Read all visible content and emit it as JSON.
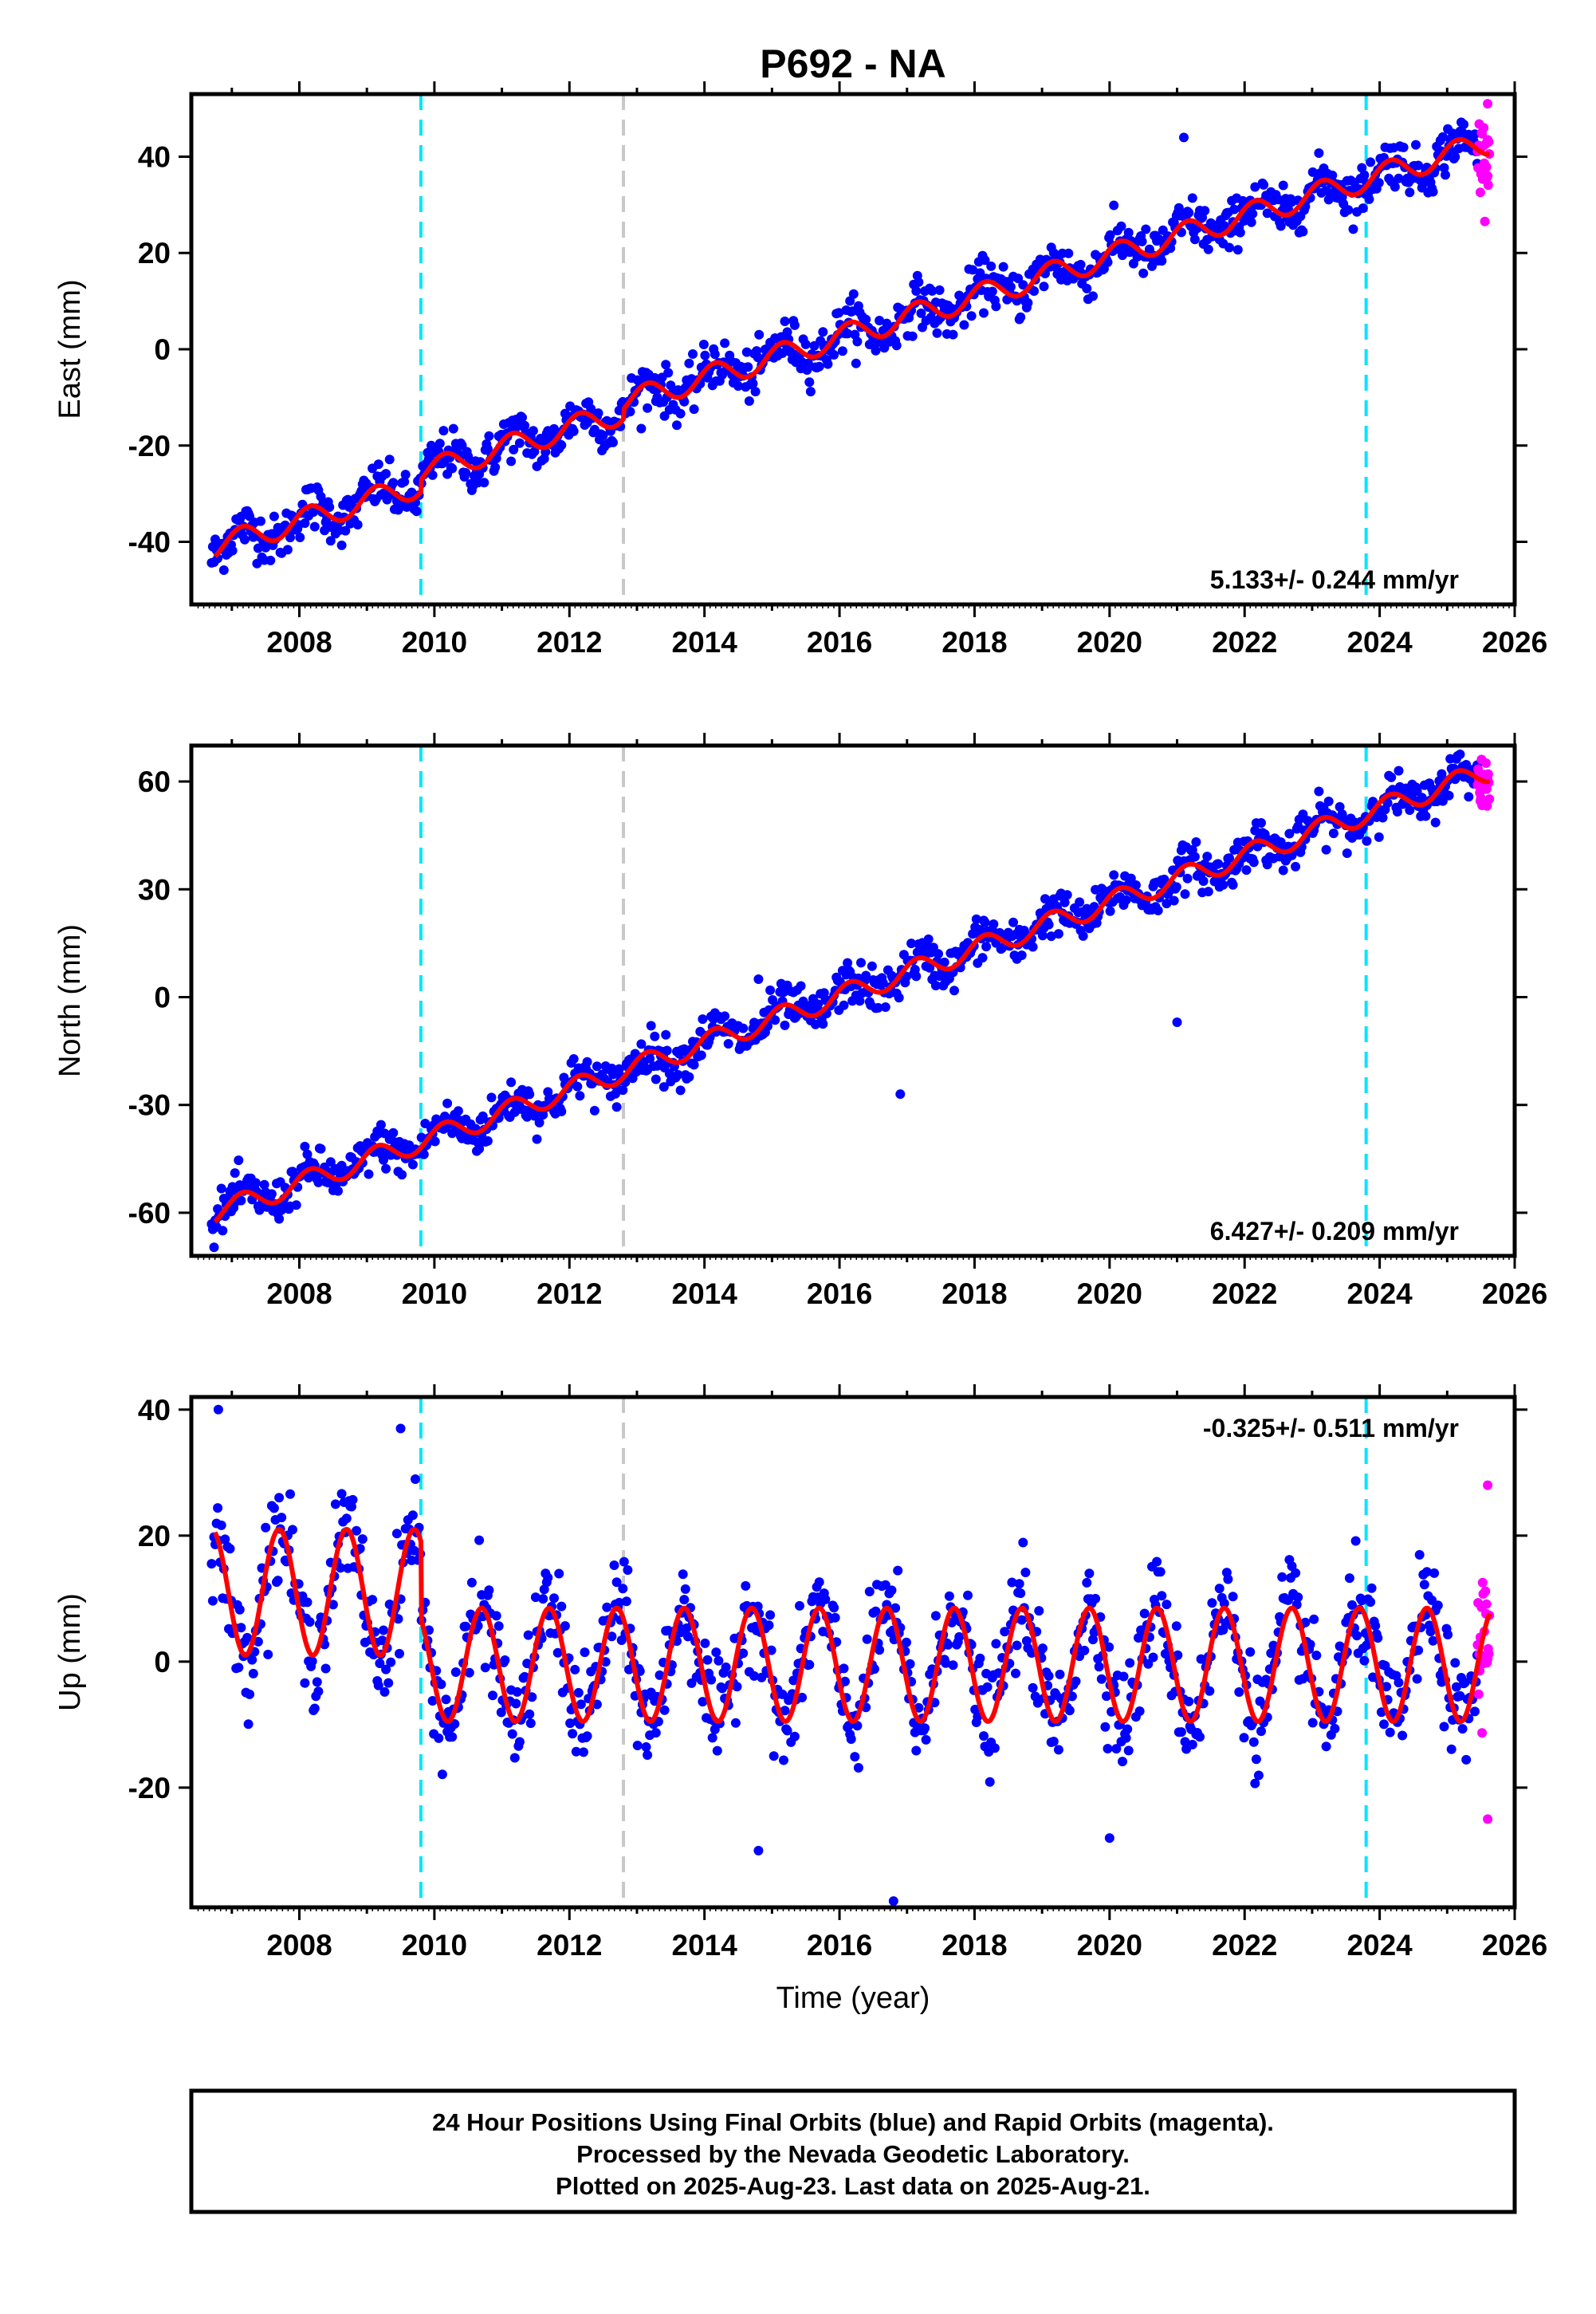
{
  "title": "P692 - NA",
  "xlabel": "Time (year)",
  "x_ticks": [
    "2008",
    "2010",
    "2012",
    "2014",
    "2016",
    "2018",
    "2020",
    "2022",
    "2024",
    "2026"
  ],
  "footer": [
    "24 Hour Positions Using Final Orbits (blue) and Rapid Orbits (magenta).",
    "Processed by the Nevada Geodetic Laboratory.",
    "Plotted on 2025-Aug-23. Last data on 2025-Aug-21."
  ],
  "colors": {
    "final_orbits": "#0000ff",
    "rapid_orbits": "#ff00ff",
    "model_fit": "#ff0000",
    "equipment_change": "#00e5ff",
    "other_event": "#c8c8c8"
  },
  "chart_data": [
    {
      "type": "scatter",
      "component": "east",
      "ylabel": "East (mm)",
      "rate_text": "5.133+/- 0.244 mm/yr",
      "rate_position": "bottom-right",
      "xlim": [
        2006.4,
        2026.0
      ],
      "ylim": [
        -53,
        53
      ],
      "y_ticks": [
        -40,
        -20,
        0,
        20,
        40
      ],
      "series_fit": {
        "x_start": 2006.75,
        "x_end": 2025.63,
        "y_at_start": -41,
        "y_at_end": 43,
        "annual_amplitude": 2.5,
        "offsets": [
          {
            "x": 2009.8,
            "dy": 2.5
          },
          {
            "x": 2012.8,
            "dy": 2.0
          }
        ]
      },
      "event_lines": [
        {
          "x": 2009.8,
          "color": "#00e5ff"
        },
        {
          "x": 2012.8,
          "color": "#c8c8c8"
        },
        {
          "x": 2023.8,
          "color": "#00e5ff"
        }
      ],
      "data_span": [
        2006.7,
        2025.45
      ],
      "rapid_span": [
        2025.45,
        2025.63
      ],
      "scatter_sd": 2.5,
      "outliers": [
        {
          "x": 2021.1,
          "y": 44
        },
        {
          "x": 2025.6,
          "y": 51
        },
        {
          "x": 2025.6,
          "y": 36
        }
      ]
    },
    {
      "type": "scatter",
      "component": "north",
      "ylabel": "North (mm)",
      "rate_text": "6.427+/- 0.209 mm/yr",
      "rate_position": "bottom-right",
      "xlim": [
        2006.4,
        2026.0
      ],
      "ylim": [
        -72,
        70
      ],
      "y_ticks": [
        -60,
        -30,
        0,
        30,
        60
      ],
      "series_fit": {
        "x_start": 2006.75,
        "x_end": 2025.63,
        "y_at_start": -60,
        "y_at_end": 63,
        "annual_amplitude": 3.0,
        "offsets": []
      },
      "event_lines": [
        {
          "x": 2009.8,
          "color": "#00e5ff"
        },
        {
          "x": 2012.8,
          "color": "#c8c8c8"
        },
        {
          "x": 2023.8,
          "color": "#00e5ff"
        }
      ],
      "data_span": [
        2006.7,
        2025.45
      ],
      "rapid_span": [
        2025.45,
        2025.63
      ],
      "scatter_sd": 3.0,
      "outliers": [
        {
          "x": 2016.9,
          "y": -27
        },
        {
          "x": 2013.4,
          "y": -25
        },
        {
          "x": 2021.0,
          "y": -7
        },
        {
          "x": 2014.8,
          "y": 5
        }
      ]
    },
    {
      "type": "scatter",
      "component": "up",
      "ylabel": "Up (mm)",
      "rate_text": "-0.325+/- 0.511 mm/yr",
      "rate_position": "top-right",
      "xlim": [
        2006.4,
        2026.0
      ],
      "ylim": [
        -39,
        42
      ],
      "y_ticks": [
        -20,
        0,
        20,
        40
      ],
      "series_fit": {
        "x_start": 2006.75,
        "x_end": 2025.63,
        "mean_before": 11,
        "mean_after": -0.5,
        "amplitude_before": 10,
        "amplitude_after": 9,
        "break_x": 2009.8
      },
      "event_lines": [
        {
          "x": 2009.8,
          "color": "#00e5ff"
        },
        {
          "x": 2012.8,
          "color": "#c8c8c8"
        },
        {
          "x": 2023.8,
          "color": "#00e5ff"
        }
      ],
      "data_span": [
        2006.7,
        2025.45
      ],
      "rapid_span": [
        2025.45,
        2025.63
      ],
      "scatter_sd": 4.0,
      "outliers": [
        {
          "x": 2006.8,
          "y": 40
        },
        {
          "x": 2009.5,
          "y": 37
        },
        {
          "x": 2014.8,
          "y": -30
        },
        {
          "x": 2016.8,
          "y": -38
        },
        {
          "x": 2020.0,
          "y": -28
        },
        {
          "x": 2025.6,
          "y": 28
        },
        {
          "x": 2025.6,
          "y": -25
        }
      ]
    }
  ]
}
